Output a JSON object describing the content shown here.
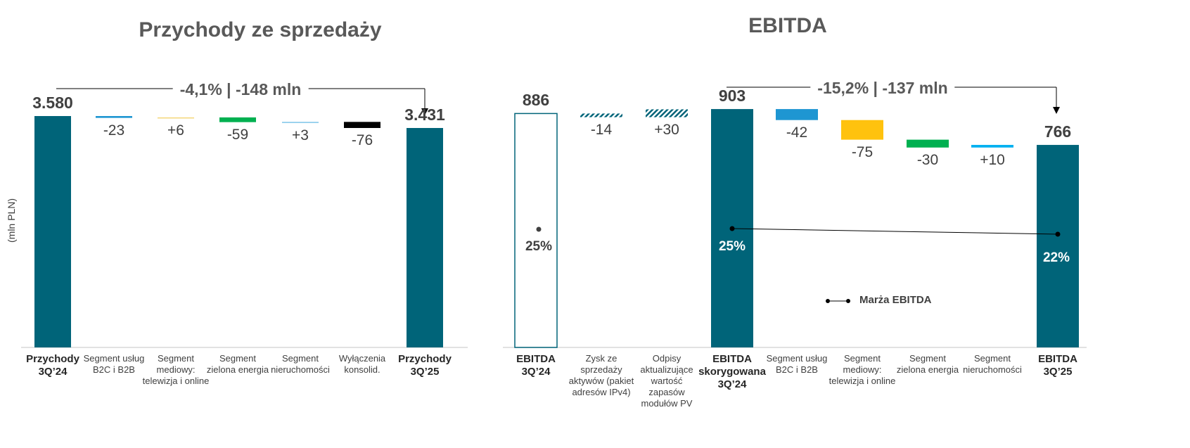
{
  "chart_data": [
    {
      "type": "waterfall",
      "title": "Przychody ze sprzedaży",
      "ylabel": "(mln PLN)",
      "change_label": "-4,1% | -148 mln",
      "categories": [
        "Przychody 3Q’24",
        "Segment usług B2C i B2B",
        "Segment mediowy: telewizja i online",
        "Segment zielona energia",
        "Segment nieruchomości",
        "Wyłączenia konsolid.",
        "Przychody 3Q’25"
      ],
      "values": [
        3580,
        -23,
        6,
        -59,
        3,
        -76,
        3431
      ],
      "labels": [
        "3.580",
        "-23",
        "+6",
        "-59",
        "+3",
        "-76",
        "3.431"
      ],
      "kinds": [
        "total",
        "delta",
        "delta",
        "delta",
        "delta",
        "delta",
        "total"
      ],
      "colors": [
        "#006479",
        "#1e96d2",
        "#f5d77a",
        "#00b050",
        "#7cc4e8",
        "#000000",
        "#006479"
      ]
    },
    {
      "type": "waterfall",
      "title": "EBITDA",
      "change_label": "-15,2% | -137 mln",
      "categories": [
        "EBITDA 3Q’24",
        "Zysk ze sprzedaży aktywów (pakiet adresów IPv4)",
        "Odpisy aktualizujące wartość zapasów modułów PV",
        "EBITDA skorygowana 3Q’24",
        "Segment usług B2C i B2B",
        "Segment mediowy: telewizja i online",
        "Segment zielona energia",
        "Segment nieruchomości",
        "EBITDA 3Q’25"
      ],
      "values": [
        886,
        -14,
        30,
        903,
        -42,
        -75,
        -30,
        10,
        766
      ],
      "labels": [
        "886",
        "-14",
        "+30",
        "903",
        "-42",
        "-75",
        "-30",
        "+10",
        "766"
      ],
      "kinds": [
        "total-outline",
        "delta-hatch",
        "delta-hatch",
        "total",
        "delta",
        "delta",
        "delta",
        "delta",
        "total"
      ],
      "colors": [
        "#006479",
        "#006479",
        "#006479",
        "#006479",
        "#1e96d2",
        "#ffc20e",
        "#00b050",
        "#00b0f0",
        "#006479"
      ],
      "margin": {
        "legend": "Marża EBITDA",
        "values": [
          "25%",
          "25%",
          "22%"
        ],
        "numeric": [
          25,
          25,
          22
        ]
      }
    }
  ]
}
